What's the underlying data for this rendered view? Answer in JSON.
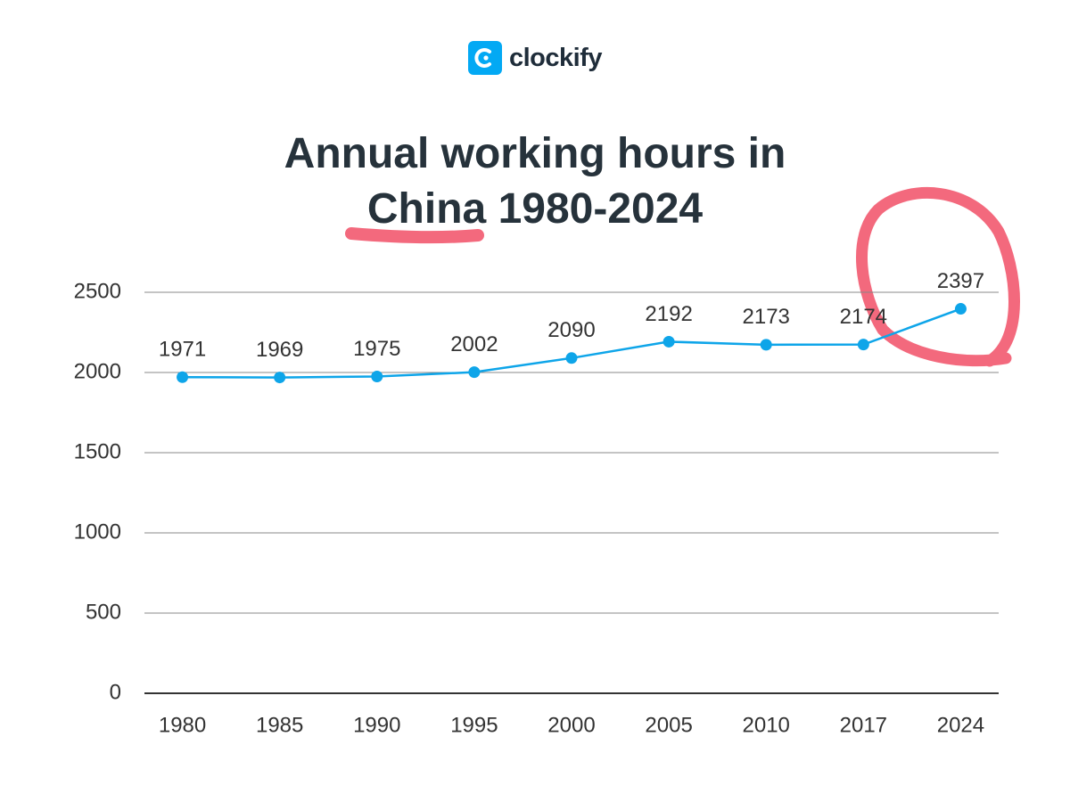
{
  "brand": "clockify",
  "chart_data": {
    "type": "line",
    "title": "Annual working hours in China 1980-2024",
    "categories": [
      "1980",
      "1985",
      "1990",
      "1995",
      "2000",
      "2005",
      "2010",
      "2017",
      "2024"
    ],
    "values": [
      1971,
      1969,
      1975,
      2002,
      2090,
      2192,
      2173,
      2174,
      2397
    ],
    "color": "#0ea5e9",
    "ylim": [
      0,
      2500
    ],
    "yticks": [
      0,
      500,
      1000,
      1500,
      2000,
      2500
    ],
    "grid": true
  }
}
